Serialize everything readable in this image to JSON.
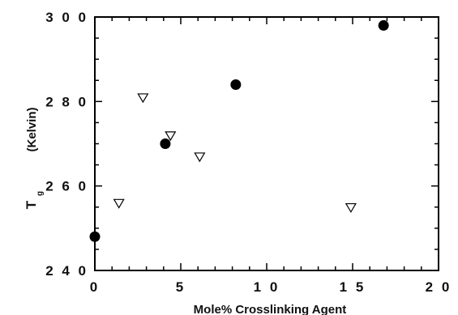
{
  "chart_data": {
    "type": "scatter",
    "xlabel": "Mole%  Crosslinking  Agent",
    "ylabel_main": "T",
    "ylabel_sub": "g",
    "ylabel_unit": "(Kelvin)",
    "xlim": [
      0,
      20
    ],
    "ylim": [
      240,
      300
    ],
    "x_ticks": [
      0,
      5,
      10,
      15,
      20
    ],
    "x_tick_labels": [
      "0",
      "5",
      "1 0",
      "1 5",
      "2 0"
    ],
    "y_ticks": [
      240,
      260,
      280,
      300
    ],
    "y_tick_labels": [
      "2 4 0",
      "2 6 0",
      "2 8 0",
      "3 0 0"
    ],
    "grid": false,
    "series": [
      {
        "marker": "filled-circle",
        "color": "#000000",
        "points": [
          {
            "x": 0,
            "y": 248
          },
          {
            "x": 4.1,
            "y": 270
          },
          {
            "x": 8.2,
            "y": 284
          },
          {
            "x": 16.8,
            "y": 298
          }
        ]
      },
      {
        "marker": "open-triangle-down",
        "color": "#000000",
        "points": [
          {
            "x": 1.4,
            "y": 256
          },
          {
            "x": 2.8,
            "y": 281
          },
          {
            "x": 4.4,
            "y": 272
          },
          {
            "x": 6.1,
            "y": 267
          },
          {
            "x": 14.9,
            "y": 255
          }
        ]
      }
    ]
  }
}
